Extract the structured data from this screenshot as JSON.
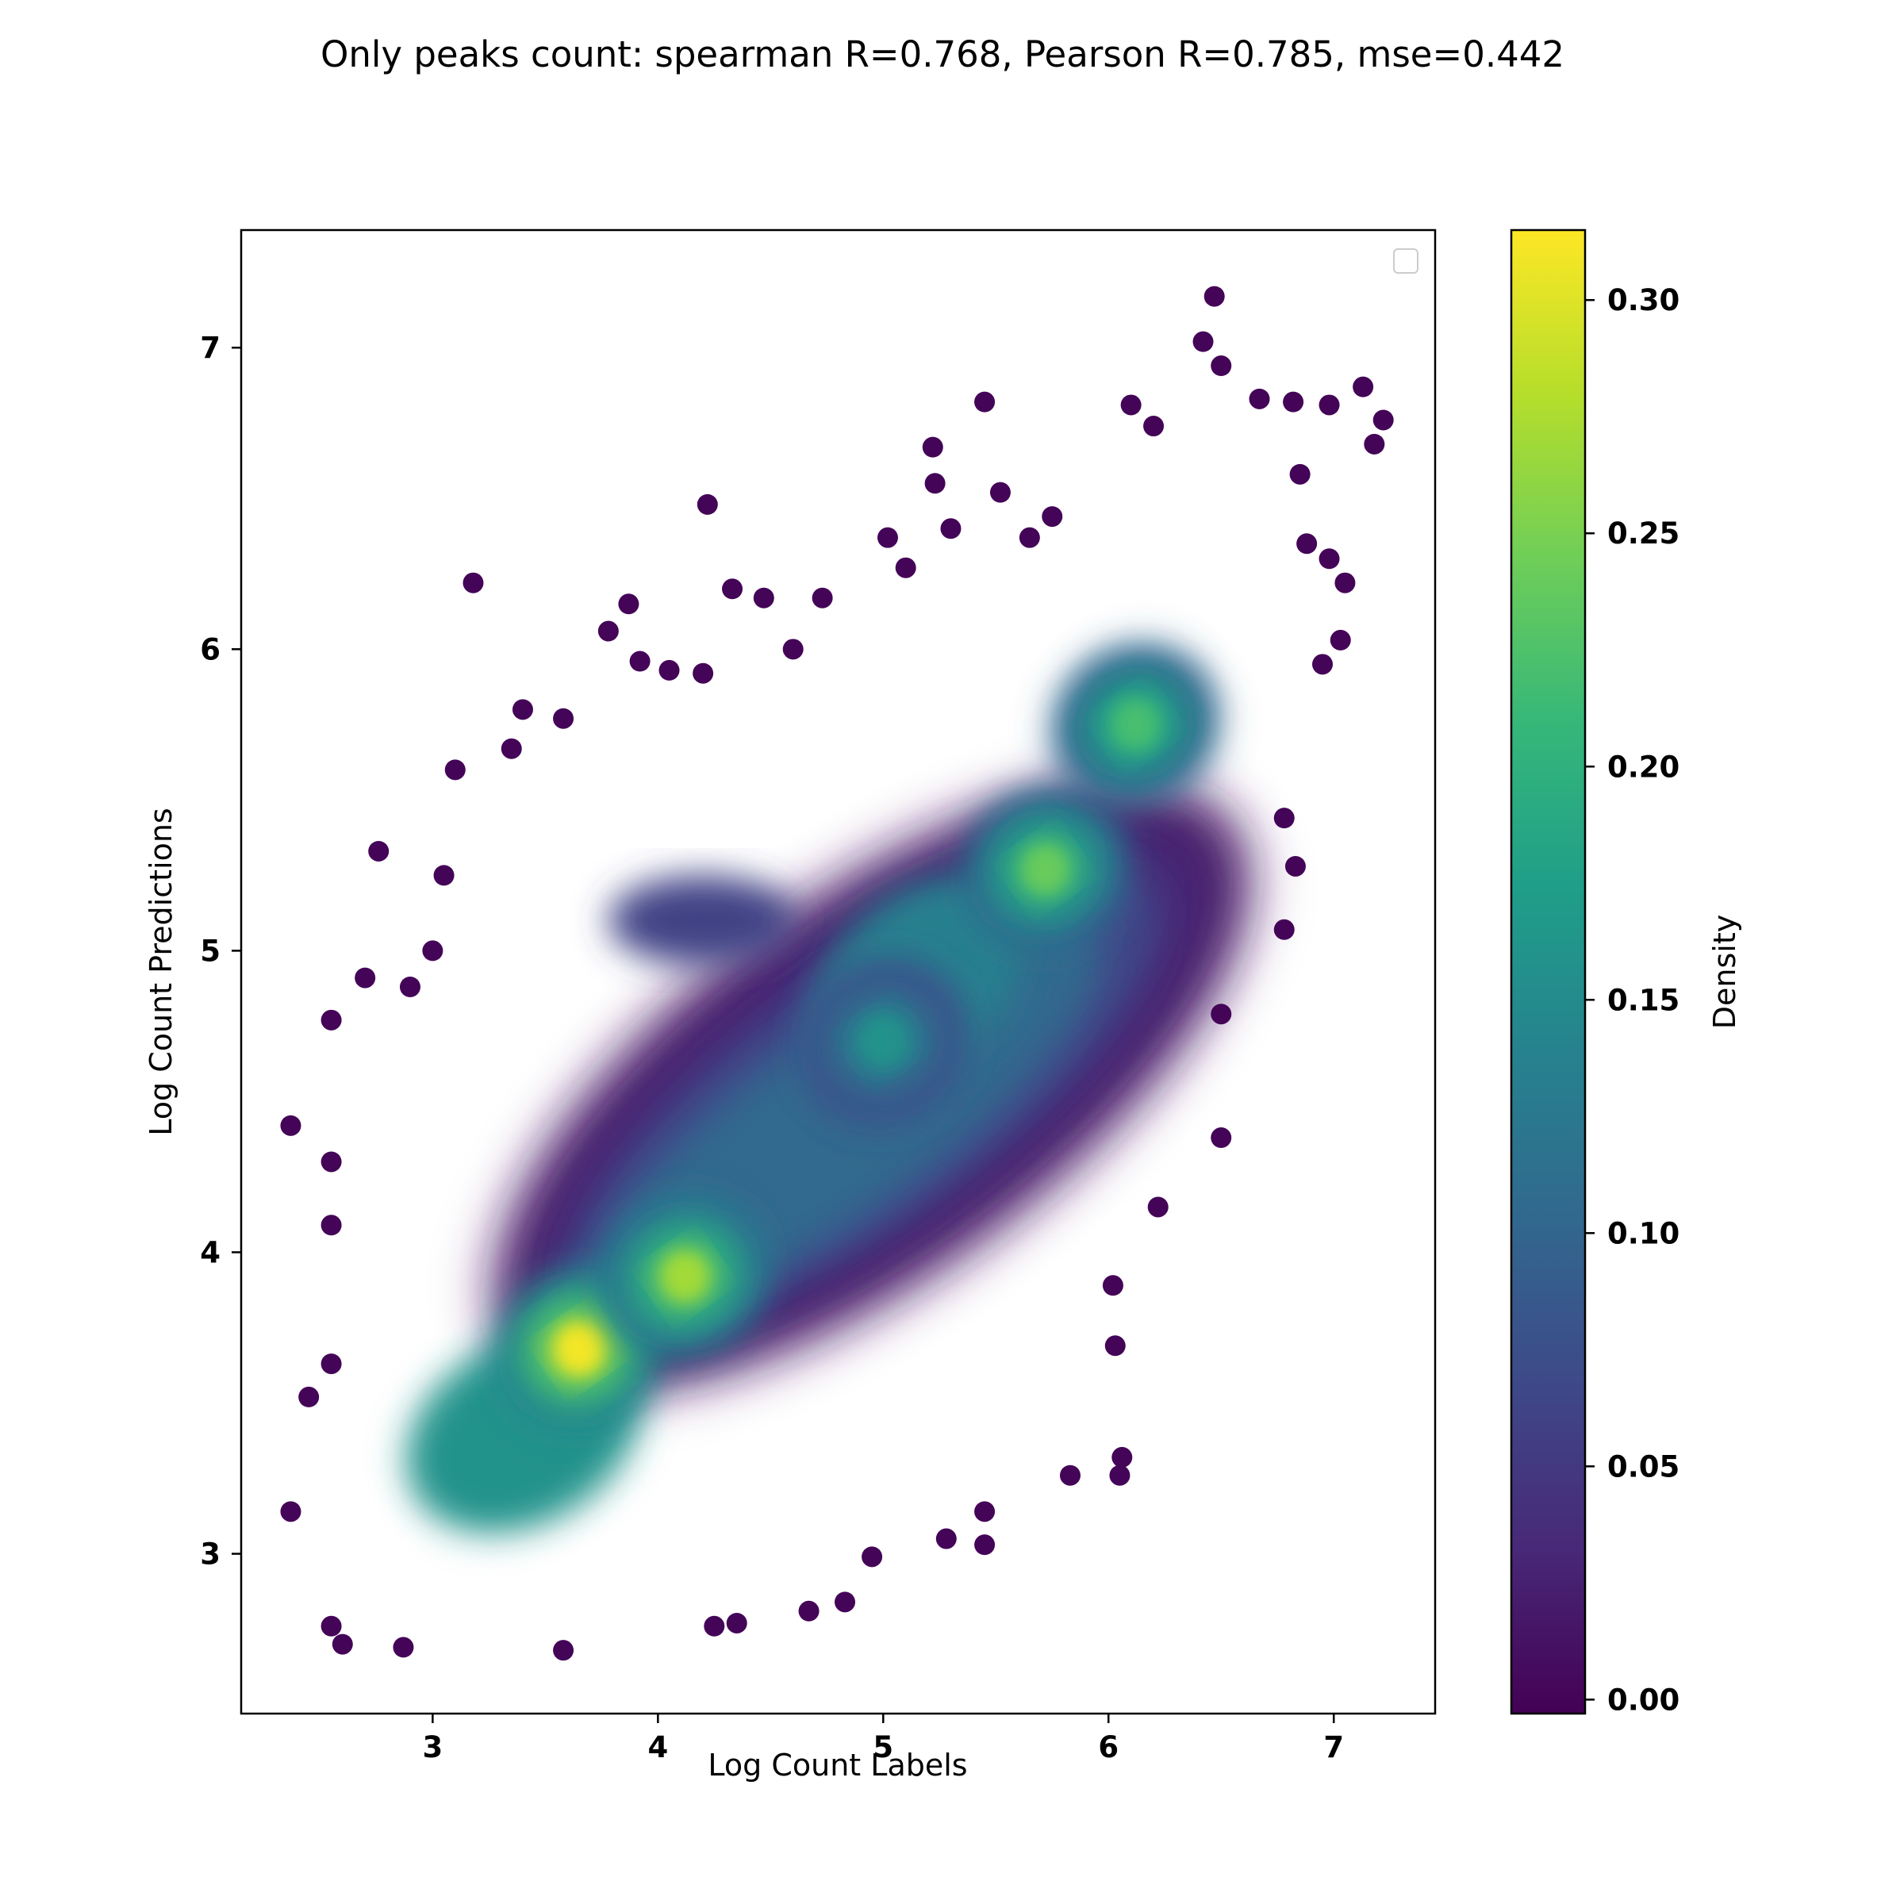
{
  "chart_data": {
    "type": "scatter",
    "title": "Only peaks count: spearman R=0.768, Pearson R=0.785, mse=0.442",
    "xlabel": "Log Count Labels",
    "ylabel": "Log Count Predictions",
    "xlim": [
      2.15,
      7.45
    ],
    "ylim": [
      2.47,
      7.39
    ],
    "xticks": [
      3,
      4,
      5,
      6,
      7
    ],
    "yticks": [
      3,
      4,
      5,
      6,
      7
    ],
    "grid": false,
    "legend": "upper right (empty)",
    "colormap": "viridis",
    "colorbar": {
      "label": "Density",
      "min": -0.003,
      "max": 0.315,
      "ticks": [
        "0.00",
        "0.05",
        "0.10",
        "0.15",
        "0.20",
        "0.25",
        "0.30"
      ]
    },
    "density_peaks": [
      {
        "x": 3.65,
        "y": 3.68,
        "density": 0.31
      },
      {
        "x": 4.12,
        "y": 3.92,
        "density": 0.27
      },
      {
        "x": 5.72,
        "y": 5.27,
        "density": 0.24
      },
      {
        "x": 6.12,
        "y": 5.75,
        "density": 0.22
      },
      {
        "x": 5.0,
        "y": 4.7,
        "density": 0.16
      }
    ],
    "outliers": [
      {
        "x": 2.37,
        "y": 4.42
      },
      {
        "x": 2.37,
        "y": 3.14
      },
      {
        "x": 2.55,
        "y": 4.77
      },
      {
        "x": 2.55,
        "y": 4.3
      },
      {
        "x": 2.6,
        "y": 2.7
      },
      {
        "x": 2.76,
        "y": 5.33
      },
      {
        "x": 2.7,
        "y": 4.91
      },
      {
        "x": 3.05,
        "y": 5.25
      },
      {
        "x": 3.1,
        "y": 5.6
      },
      {
        "x": 3.18,
        "y": 6.22
      },
      {
        "x": 3.35,
        "y": 5.67
      },
      {
        "x": 3.4,
        "y": 5.8
      },
      {
        "x": 3.58,
        "y": 5.77
      },
      {
        "x": 3.78,
        "y": 6.06
      },
      {
        "x": 3.87,
        "y": 6.15
      },
      {
        "x": 4.22,
        "y": 6.48
      },
      {
        "x": 4.33,
        "y": 6.2
      },
      {
        "x": 4.47,
        "y": 6.17
      },
      {
        "x": 4.73,
        "y": 6.17
      },
      {
        "x": 5.02,
        "y": 6.37
      },
      {
        "x": 5.22,
        "y": 6.67
      },
      {
        "x": 5.23,
        "y": 6.55
      },
      {
        "x": 5.45,
        "y": 6.82
      },
      {
        "x": 5.52,
        "y": 6.52
      },
      {
        "x": 6.1,
        "y": 6.81
      },
      {
        "x": 6.2,
        "y": 6.74
      },
      {
        "x": 6.42,
        "y": 7.02
      },
      {
        "x": 6.47,
        "y": 7.17
      },
      {
        "x": 6.5,
        "y": 6.94
      },
      {
        "x": 6.67,
        "y": 6.83
      },
      {
        "x": 6.82,
        "y": 6.82
      },
      {
        "x": 6.98,
        "y": 6.81
      },
      {
        "x": 7.13,
        "y": 6.87
      },
      {
        "x": 7.22,
        "y": 6.76
      },
      {
        "x": 7.18,
        "y": 6.68
      },
      {
        "x": 7.05,
        "y": 6.22
      },
      {
        "x": 7.03,
        "y": 6.03
      },
      {
        "x": 6.95,
        "y": 5.95
      },
      {
        "x": 6.78,
        "y": 5.44
      },
      {
        "x": 6.83,
        "y": 5.28
      },
      {
        "x": 6.78,
        "y": 5.07
      },
      {
        "x": 6.5,
        "y": 4.79
      },
      {
        "x": 6.5,
        "y": 4.38
      },
      {
        "x": 6.22,
        "y": 4.15
      },
      {
        "x": 6.02,
        "y": 3.89
      },
      {
        "x": 6.03,
        "y": 3.69
      },
      {
        "x": 6.06,
        "y": 3.32
      },
      {
        "x": 6.05,
        "y": 3.26
      },
      {
        "x": 5.83,
        "y": 3.26
      },
      {
        "x": 5.45,
        "y": 3.03
      },
      {
        "x": 5.45,
        "y": 3.14
      },
      {
        "x": 5.28,
        "y": 3.05
      },
      {
        "x": 4.95,
        "y": 2.99
      },
      {
        "x": 4.83,
        "y": 2.84
      },
      {
        "x": 4.67,
        "y": 2.81
      },
      {
        "x": 4.35,
        "y": 2.77
      },
      {
        "x": 4.25,
        "y": 2.76
      },
      {
        "x": 3.58,
        "y": 2.68
      },
      {
        "x": 2.87,
        "y": 2.69
      },
      {
        "x": 2.55,
        "y": 2.76
      },
      {
        "x": 2.45,
        "y": 3.52
      },
      {
        "x": 2.55,
        "y": 3.63
      },
      {
        "x": 2.55,
        "y": 4.09
      },
      {
        "x": 5.75,
        "y": 6.44
      },
      {
        "x": 5.65,
        "y": 6.37
      },
      {
        "x": 5.3,
        "y": 6.4
      },
      {
        "x": 5.1,
        "y": 6.27
      },
      {
        "x": 3.92,
        "y": 5.96
      },
      {
        "x": 4.05,
        "y": 5.93
      },
      {
        "x": 4.2,
        "y": 5.92
      },
      {
        "x": 4.6,
        "y": 6.0
      },
      {
        "x": 3.0,
        "y": 5.0
      },
      {
        "x": 2.9,
        "y": 4.88
      },
      {
        "x": 6.85,
        "y": 6.58
      },
      {
        "x": 6.88,
        "y": 6.35
      },
      {
        "x": 6.98,
        "y": 6.3
      }
    ],
    "cloud_bands": [
      {
        "center": [
          4.95,
          4.55
        ],
        "rx": 1.98,
        "ry": 0.62,
        "angle_deg": 36,
        "density": 0.012
      },
      {
        "center": [
          4.95,
          4.55
        ],
        "rx": 1.78,
        "ry": 0.5,
        "angle_deg": 36,
        "density": 0.035
      },
      {
        "center": [
          4.9,
          4.5
        ],
        "rx": 1.58,
        "ry": 0.4,
        "angle_deg": 36,
        "density": 0.065
      },
      {
        "center": [
          4.85,
          4.45
        ],
        "rx": 1.35,
        "ry": 0.3,
        "angle_deg": 36,
        "density": 0.105
      },
      {
        "center": [
          3.4,
          3.4
        ],
        "rx": 0.55,
        "ry": 0.3,
        "angle_deg": 30,
        "density": 0.16
      },
      {
        "center": [
          5.15,
          4.9
        ],
        "rx": 0.55,
        "ry": 0.28,
        "angle_deg": 45,
        "density": 0.135
      },
      {
        "center": [
          4.2,
          5.1
        ],
        "rx": 0.42,
        "ry": 0.15,
        "angle_deg": 0,
        "density": 0.06
      }
    ]
  }
}
